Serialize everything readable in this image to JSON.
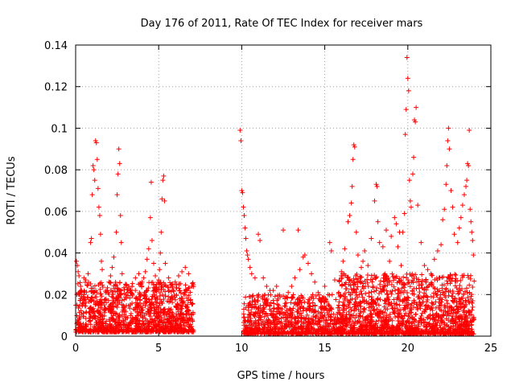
{
  "chart_data": {
    "type": "scatter",
    "title": "Day 176 of 2011, Rate Of TEC Index for receiver mars",
    "xlabel": "GPS time / hours",
    "ylabel": "ROTI / TECUs",
    "xlim": [
      0,
      25
    ],
    "ylim": [
      0,
      0.14
    ],
    "x_ticks": [
      0,
      5,
      10,
      15,
      20,
      25
    ],
    "x_tick_labels": [
      "0",
      "5",
      "10",
      "15",
      "20",
      "25"
    ],
    "y_ticks": [
      0,
      0.02,
      0.04,
      0.06,
      0.08,
      0.1,
      0.12,
      0.14
    ],
    "y_tick_labels": [
      "0",
      "0.02",
      "0.04",
      "0.06",
      "0.08",
      "0.1",
      "0.12",
      "0.14"
    ],
    "grid": true,
    "marker": "+",
    "series": [
      {
        "name": "ROTI",
        "color": "#ff0000",
        "points": [
          [
            0.05,
            0.036
          ],
          [
            0.1,
            0.034
          ],
          [
            0.15,
            0.031
          ],
          [
            0.2,
            0.029
          ],
          [
            0.3,
            0.024
          ],
          [
            0.35,
            0.022
          ],
          [
            0.5,
            0.028
          ],
          [
            0.6,
            0.027
          ],
          [
            0.75,
            0.03
          ],
          [
            0.9,
            0.045
          ],
          [
            0.95,
            0.047
          ],
          [
            1.0,
            0.068
          ],
          [
            1.05,
            0.082
          ],
          [
            1.1,
            0.08
          ],
          [
            1.15,
            0.075
          ],
          [
            1.2,
            0.094
          ],
          [
            1.25,
            0.093
          ],
          [
            1.3,
            0.085
          ],
          [
            1.35,
            0.071
          ],
          [
            1.4,
            0.062
          ],
          [
            1.45,
            0.058
          ],
          [
            1.5,
            0.049
          ],
          [
            1.55,
            0.036
          ],
          [
            1.6,
            0.032
          ],
          [
            1.9,
            0.022
          ],
          [
            2.0,
            0.026
          ],
          [
            2.1,
            0.029
          ],
          [
            2.2,
            0.033
          ],
          [
            2.3,
            0.038
          ],
          [
            2.45,
            0.05
          ],
          [
            2.5,
            0.068
          ],
          [
            2.55,
            0.078
          ],
          [
            2.6,
            0.09
          ],
          [
            2.65,
            0.083
          ],
          [
            2.7,
            0.058
          ],
          [
            2.75,
            0.045
          ],
          [
            2.8,
            0.03
          ],
          [
            3.0,
            0.025
          ],
          [
            3.2,
            0.024
          ],
          [
            3.4,
            0.02
          ],
          [
            3.6,
            0.028
          ],
          [
            3.8,
            0.03
          ],
          [
            4.0,
            0.026
          ],
          [
            4.1,
            0.028
          ],
          [
            4.2,
            0.031
          ],
          [
            4.3,
            0.037
          ],
          [
            4.4,
            0.042
          ],
          [
            4.5,
            0.057
          ],
          [
            4.55,
            0.074
          ],
          [
            4.6,
            0.046
          ],
          [
            4.7,
            0.035
          ],
          [
            4.8,
            0.029
          ],
          [
            5.0,
            0.027
          ],
          [
            5.05,
            0.032
          ],
          [
            5.1,
            0.04
          ],
          [
            5.15,
            0.05
          ],
          [
            5.2,
            0.066
          ],
          [
            5.25,
            0.075
          ],
          [
            5.3,
            0.077
          ],
          [
            5.35,
            0.065
          ],
          [
            5.4,
            0.035
          ],
          [
            5.6,
            0.028
          ],
          [
            5.8,
            0.025
          ],
          [
            6.0,
            0.026
          ],
          [
            6.2,
            0.029
          ],
          [
            6.4,
            0.031
          ],
          [
            6.6,
            0.033
          ],
          [
            6.8,
            0.03
          ],
          [
            7.0,
            0.024
          ],
          [
            9.9,
            0.099
          ],
          [
            9.95,
            0.094
          ],
          [
            10.0,
            0.07
          ],
          [
            10.05,
            0.069
          ],
          [
            10.1,
            0.062
          ],
          [
            10.15,
            0.058
          ],
          [
            10.2,
            0.052
          ],
          [
            10.25,
            0.047
          ],
          [
            10.3,
            0.041
          ],
          [
            10.35,
            0.039
          ],
          [
            10.4,
            0.037
          ],
          [
            10.5,
            0.033
          ],
          [
            10.6,
            0.03
          ],
          [
            10.8,
            0.028
          ],
          [
            11.0,
            0.049
          ],
          [
            11.1,
            0.046
          ],
          [
            11.3,
            0.028
          ],
          [
            11.5,
            0.024
          ],
          [
            11.7,
            0.022
          ],
          [
            11.9,
            0.022
          ],
          [
            12.1,
            0.024
          ],
          [
            12.5,
            0.051
          ],
          [
            12.6,
            0.018
          ],
          [
            12.8,
            0.021
          ],
          [
            13.0,
            0.024
          ],
          [
            13.2,
            0.028
          ],
          [
            13.4,
            0.051
          ],
          [
            13.5,
            0.032
          ],
          [
            13.7,
            0.038
          ],
          [
            13.8,
            0.039
          ],
          [
            14.0,
            0.035
          ],
          [
            14.2,
            0.03
          ],
          [
            14.4,
            0.026
          ],
          [
            14.6,
            0.021
          ],
          [
            14.8,
            0.017
          ],
          [
            15.0,
            0.024
          ],
          [
            15.2,
            0.02
          ],
          [
            15.3,
            0.045
          ],
          [
            15.4,
            0.041
          ],
          [
            15.6,
            0.027
          ],
          [
            16.0,
            0.031
          ],
          [
            16.1,
            0.036
          ],
          [
            16.2,
            0.042
          ],
          [
            16.4,
            0.055
          ],
          [
            16.5,
            0.058
          ],
          [
            16.6,
            0.064
          ],
          [
            16.65,
            0.072
          ],
          [
            16.7,
            0.085
          ],
          [
            16.75,
            0.092
          ],
          [
            16.8,
            0.091
          ],
          [
            16.9,
            0.05
          ],
          [
            17.0,
            0.039
          ],
          [
            17.2,
            0.033
          ],
          [
            17.3,
            0.036
          ],
          [
            17.4,
            0.041
          ],
          [
            17.6,
            0.034
          ],
          [
            17.8,
            0.047
          ],
          [
            18.0,
            0.065
          ],
          [
            18.1,
            0.073
          ],
          [
            18.15,
            0.072
          ],
          [
            18.2,
            0.055
          ],
          [
            18.3,
            0.045
          ],
          [
            18.5,
            0.043
          ],
          [
            18.7,
            0.051
          ],
          [
            18.9,
            0.036
          ],
          [
            19.0,
            0.048
          ],
          [
            19.2,
            0.057
          ],
          [
            19.3,
            0.054
          ],
          [
            19.4,
            0.043
          ],
          [
            19.5,
            0.05
          ],
          [
            19.6,
            0.034
          ],
          [
            19.7,
            0.05
          ],
          [
            19.8,
            0.059
          ],
          [
            19.85,
            0.097
          ],
          [
            19.9,
            0.109
          ],
          [
            19.95,
            0.134
          ],
          [
            20.0,
            0.124
          ],
          [
            20.05,
            0.118
          ],
          [
            20.1,
            0.075
          ],
          [
            20.15,
            0.065
          ],
          [
            20.2,
            0.062
          ],
          [
            20.3,
            0.078
          ],
          [
            20.35,
            0.086
          ],
          [
            20.4,
            0.104
          ],
          [
            20.45,
            0.103
          ],
          [
            20.5,
            0.11
          ],
          [
            20.6,
            0.063
          ],
          [
            20.8,
            0.045
          ],
          [
            21.0,
            0.034
          ],
          [
            21.2,
            0.032
          ],
          [
            21.4,
            0.03
          ],
          [
            21.6,
            0.037
          ],
          [
            21.8,
            0.041
          ],
          [
            22.0,
            0.044
          ],
          [
            22.1,
            0.056
          ],
          [
            22.2,
            0.061
          ],
          [
            22.3,
            0.073
          ],
          [
            22.35,
            0.082
          ],
          [
            22.4,
            0.094
          ],
          [
            22.45,
            0.1
          ],
          [
            22.5,
            0.09
          ],
          [
            22.6,
            0.07
          ],
          [
            22.7,
            0.062
          ],
          [
            22.8,
            0.049
          ],
          [
            23.0,
            0.045
          ],
          [
            23.1,
            0.052
          ],
          [
            23.2,
            0.057
          ],
          [
            23.3,
            0.063
          ],
          [
            23.4,
            0.068
          ],
          [
            23.5,
            0.072
          ],
          [
            23.55,
            0.075
          ],
          [
            23.6,
            0.083
          ],
          [
            23.65,
            0.082
          ],
          [
            23.7,
            0.099
          ],
          [
            23.75,
            0.061
          ],
          [
            23.8,
            0.055
          ],
          [
            23.85,
            0.05
          ],
          [
            23.9,
            0.046
          ],
          [
            23.95,
            0.039
          ]
        ],
        "dense_clusters": [
          {
            "x_range": [
              0,
              7.1
            ],
            "y_range": [
              0.002,
              0.026
            ],
            "count": 1200
          },
          {
            "x_range": [
              10.1,
              15.8
            ],
            "y_range": [
              0.001,
              0.02
            ],
            "count": 800
          },
          {
            "x_range": [
              15.8,
              24.0
            ],
            "y_range": [
              0.001,
              0.03
            ],
            "count": 1500
          }
        ]
      }
    ]
  }
}
